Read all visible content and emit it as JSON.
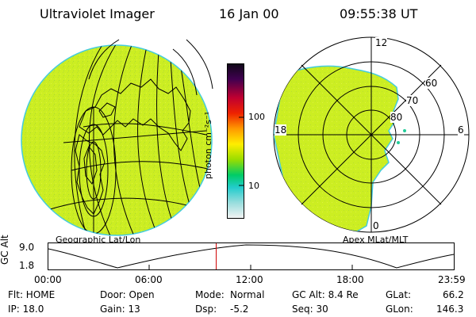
{
  "header": {
    "title": "Ultraviolet Imager",
    "date": "16 Jan 00",
    "time": "09:55:38 UT"
  },
  "colorbar": {
    "unit": "photon cm⁻²s⁻¹",
    "ticks": [
      "100",
      "10"
    ]
  },
  "left_panel": {
    "caption": "Geographic Lat/Lon"
  },
  "right_panel": {
    "caption": "Apex MLat/MLT",
    "mlt_labels": [
      "12",
      "18",
      "6",
      "0"
    ],
    "lat_labels": [
      "60",
      "70",
      "80"
    ]
  },
  "timeline": {
    "ylabel": "GC Alt",
    "ymax": "9.0",
    "ymin": "1.8",
    "xticks": [
      "00:00",
      "06:00",
      "12:00",
      "18:00",
      "23:59"
    ],
    "marker_time": "09:55:38",
    "marker_color": "#d00000"
  },
  "status": {
    "flt": "Flt: HOME",
    "ip": "IP: 18.0",
    "door": "Door: Open",
    "gain": "Gain: 13",
    "mode_label": "Mode:",
    "mode_value": "Normal",
    "dsp_label": "Dsp:",
    "dsp_value": "-5.2",
    "gcalt": "GC Alt: 8.4 Re",
    "seq": "Seq: 30",
    "glat": "GLat:",
    "glat_value": "66.2",
    "glon": "GLon:",
    "glon_value": "146.3"
  },
  "colors": {
    "fill": "#ccee22",
    "edge": "#44ccdd",
    "line": "#000000"
  }
}
